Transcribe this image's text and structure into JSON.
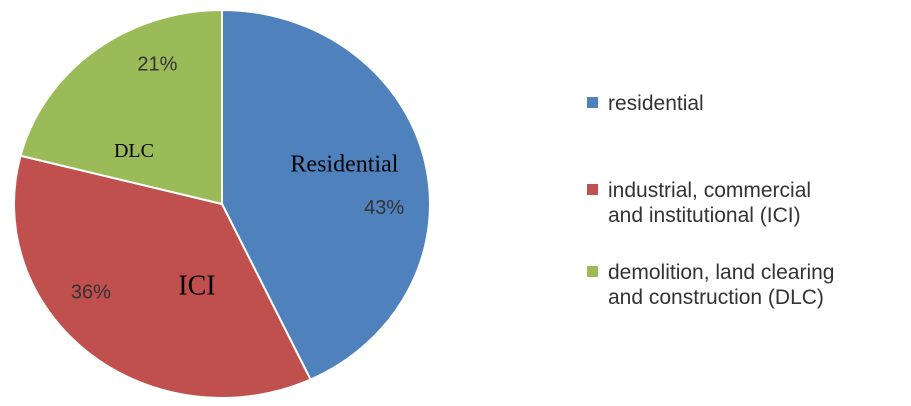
{
  "chart_data": {
    "type": "pie",
    "categories": [
      "residential",
      "industrial, commercial and institutional (ICI)",
      "demolition, land clearing and construction (DLC)"
    ],
    "values": [
      43,
      36,
      21
    ],
    "value_labels": [
      "43%",
      "36%",
      "21%"
    ],
    "colors": [
      "#4f81bd",
      "#c0504d",
      "#9bbb59"
    ],
    "annotations": [
      "Residential",
      "ICI",
      "DLC"
    ],
    "legend": "right"
  }
}
